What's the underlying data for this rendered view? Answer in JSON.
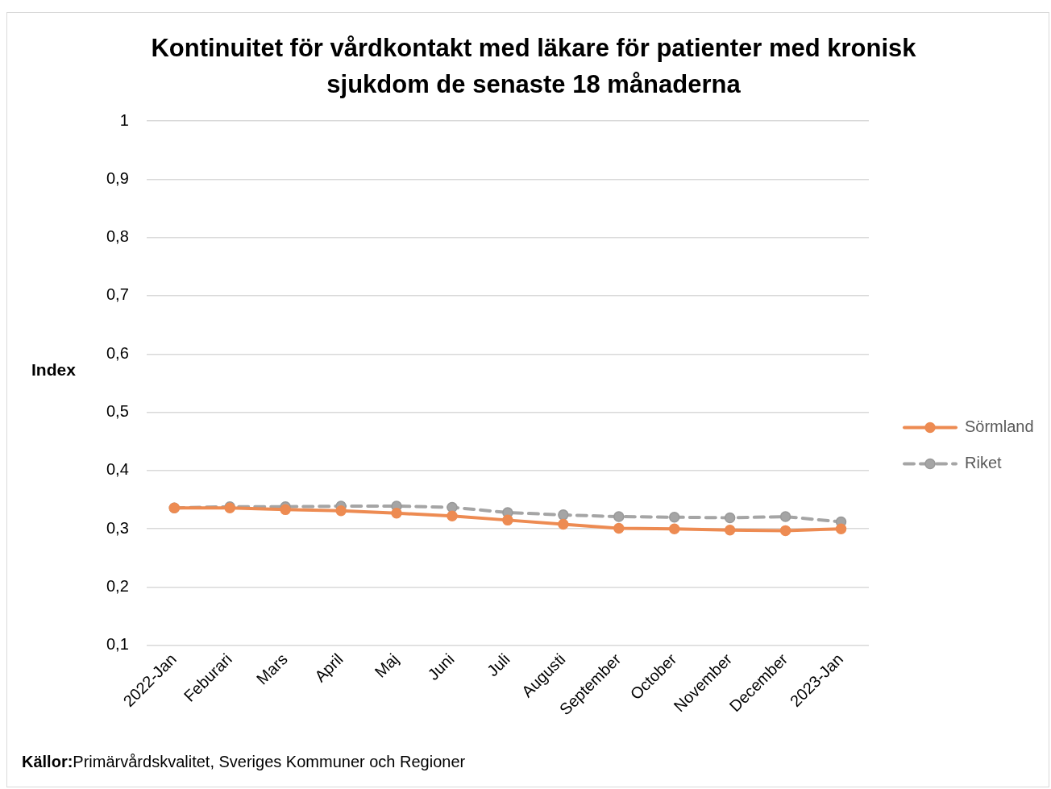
{
  "chart_data": {
    "type": "line",
    "title": "Kontinuitet för vårdkontakt med läkare för patienter med kronisk sjukdom de senaste 18 månaderna",
    "ylabel": "Index",
    "categories": [
      "2022-Jan",
      "Feburari",
      "Mars",
      "April",
      "Maj",
      "Juni",
      "Juli",
      "Augusti",
      "September",
      "October",
      "November",
      "December",
      "2023-Jan"
    ],
    "series": [
      {
        "name": "Sörmland",
        "color": "#ed8b52",
        "line_style": "solid",
        "values": [
          0.336,
          0.336,
          0.333,
          0.331,
          0.327,
          0.322,
          0.315,
          0.308,
          0.301,
          0.3,
          0.298,
          0.297,
          0.3
        ]
      },
      {
        "name": "Riket",
        "color": "#a5a5a5",
        "line_style": "dashed",
        "values": [
          0.336,
          0.338,
          0.338,
          0.339,
          0.339,
          0.337,
          0.328,
          0.324,
          0.321,
          0.32,
          0.319,
          0.321,
          0.312
        ]
      }
    ],
    "ylim": [
      0.1,
      1
    ],
    "yticks": [
      {
        "value": 0.1,
        "label": "0,1"
      },
      {
        "value": 0.2,
        "label": "0,2"
      },
      {
        "value": 0.3,
        "label": "0,3"
      },
      {
        "value": 0.4,
        "label": "0,4"
      },
      {
        "value": 0.5,
        "label": "0,5"
      },
      {
        "value": 0.6,
        "label": "0,6"
      },
      {
        "value": 0.7,
        "label": "0,7"
      },
      {
        "value": 0.8,
        "label": "0,8"
      },
      {
        "value": 0.9,
        "label": "0,9"
      },
      {
        "value": 1,
        "label": "1"
      }
    ],
    "grid": "y",
    "legend": "right",
    "marker": "circle",
    "annotations": [
      "Källor:Primärvårdskvalitet, Sveriges Kommuner och Regioner"
    ]
  }
}
